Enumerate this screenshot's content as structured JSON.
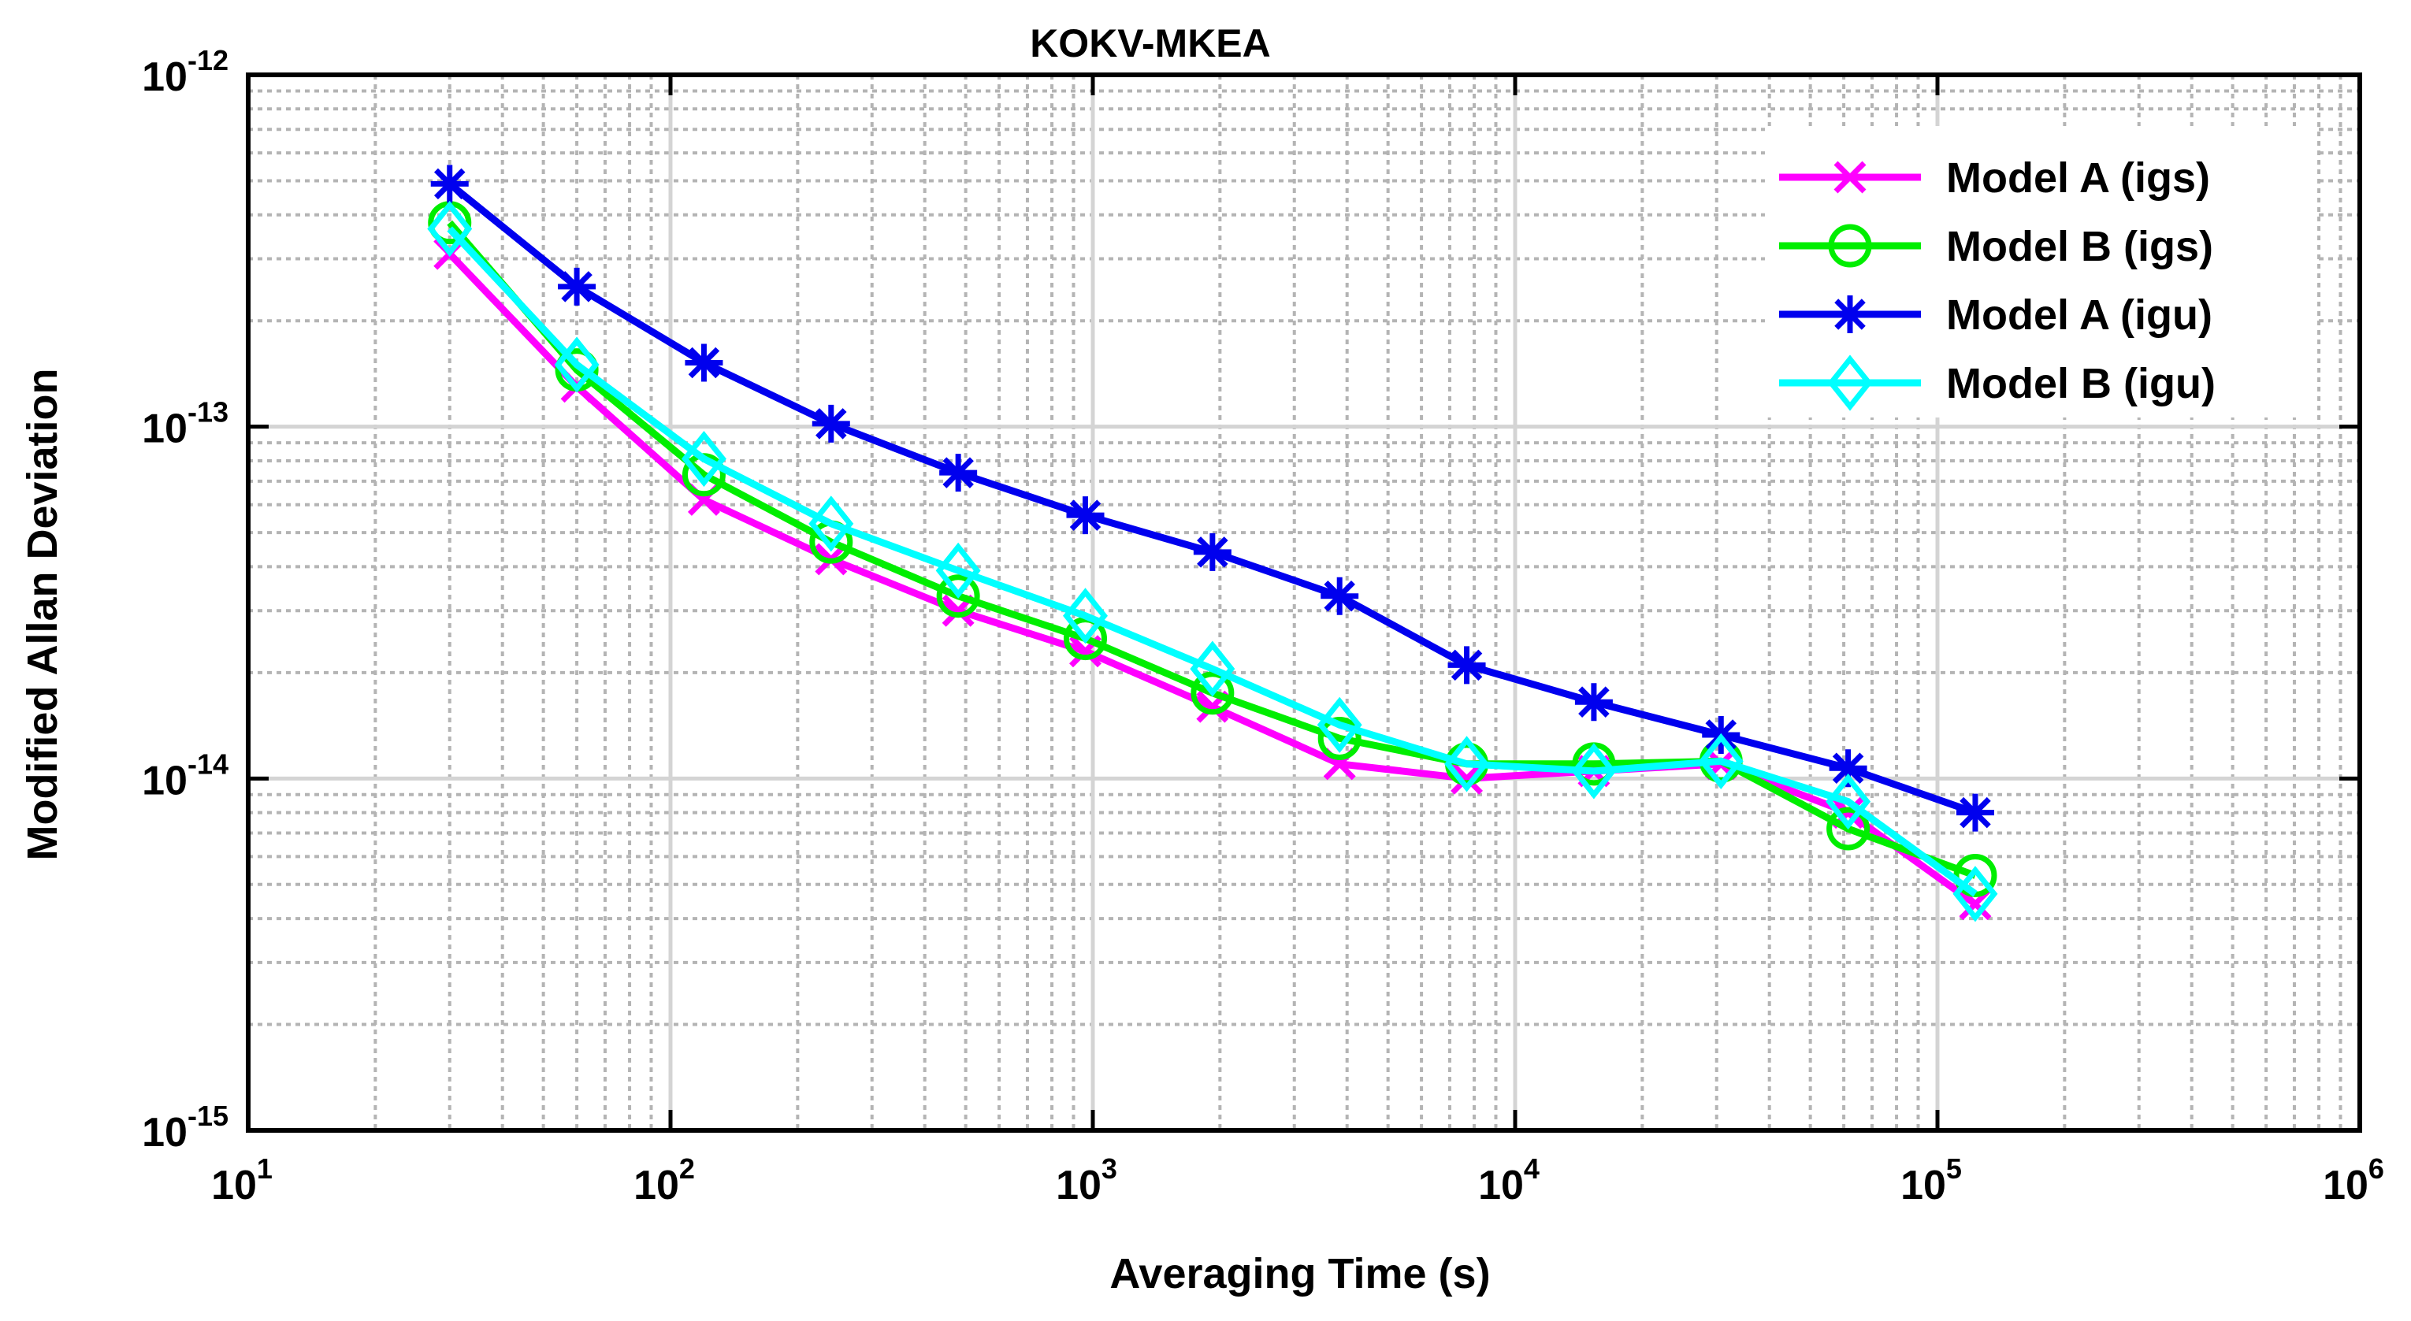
{
  "chart_data": {
    "type": "line",
    "title": "KOKV-MKEA",
    "xlabel": "Averaging Time (s)",
    "ylabel": "Modified Allan Deviation",
    "xscale": "log",
    "yscale": "log",
    "xlim": [
      10,
      1000000
    ],
    "ylim": [
      1e-15,
      1e-12
    ],
    "grid": true,
    "minor_grid": true,
    "legend_location": "top-right",
    "x_ticks": [
      {
        "base": "10",
        "exp": "1",
        "value": 10
      },
      {
        "base": "10",
        "exp": "2",
        "value": 100
      },
      {
        "base": "10",
        "exp": "3",
        "value": 1000
      },
      {
        "base": "10",
        "exp": "4",
        "value": 10000
      },
      {
        "base": "10",
        "exp": "5",
        "value": 100000
      },
      {
        "base": "10",
        "exp": "6",
        "value": 1000000
      }
    ],
    "y_ticks": [
      {
        "base": "10",
        "exp": "-12",
        "value": 1e-12
      },
      {
        "base": "10",
        "exp": "-13",
        "value": 1e-13
      },
      {
        "base": "10",
        "exp": "-14",
        "value": 1e-14
      },
      {
        "base": "10",
        "exp": "-15",
        "value": 1e-15
      }
    ],
    "x": [
      30,
      60,
      120,
      240,
      480,
      960,
      1920,
      3840,
      7680,
      15360,
      30720,
      61440,
      122880
    ],
    "series": [
      {
        "name": "Model A (igs)",
        "color": "#ff00ff",
        "marker": "x",
        "values": [
          3.1e-13,
          1.3e-13,
          6.2e-14,
          4.2e-14,
          3e-14,
          2.3e-14,
          1.6e-14,
          1.1e-14,
          1e-14,
          1.05e-14,
          1.1e-14,
          8e-15,
          4.4e-15
        ]
      },
      {
        "name": "Model B (igs)",
        "color": "#00ee00",
        "marker": "circle",
        "values": [
          3.8e-13,
          1.45e-13,
          7.3e-14,
          4.7e-14,
          3.3e-14,
          2.5e-14,
          1.75e-14,
          1.3e-14,
          1.1e-14,
          1.1e-14,
          1.12e-14,
          7.2e-15,
          5.3e-15
        ]
      },
      {
        "name": "Model A (igu)",
        "color": "#0000ee",
        "marker": "asterisk",
        "values": [
          4.9e-13,
          2.5e-13,
          1.52e-13,
          1.02e-13,
          7.4e-14,
          5.6e-14,
          4.4e-14,
          3.3e-14,
          2.1e-14,
          1.65e-14,
          1.33e-14,
          1.07e-14,
          8e-15
        ]
      },
      {
        "name": "Model B (igu)",
        "color": "#00ffff",
        "marker": "diamond",
        "values": [
          3.65e-13,
          1.5e-13,
          8.1e-14,
          5.3e-14,
          3.9e-14,
          2.9e-14,
          2.05e-14,
          1.42e-14,
          1.1e-14,
          1.05e-14,
          1.12e-14,
          8.6e-15,
          4.7e-15
        ]
      }
    ]
  }
}
